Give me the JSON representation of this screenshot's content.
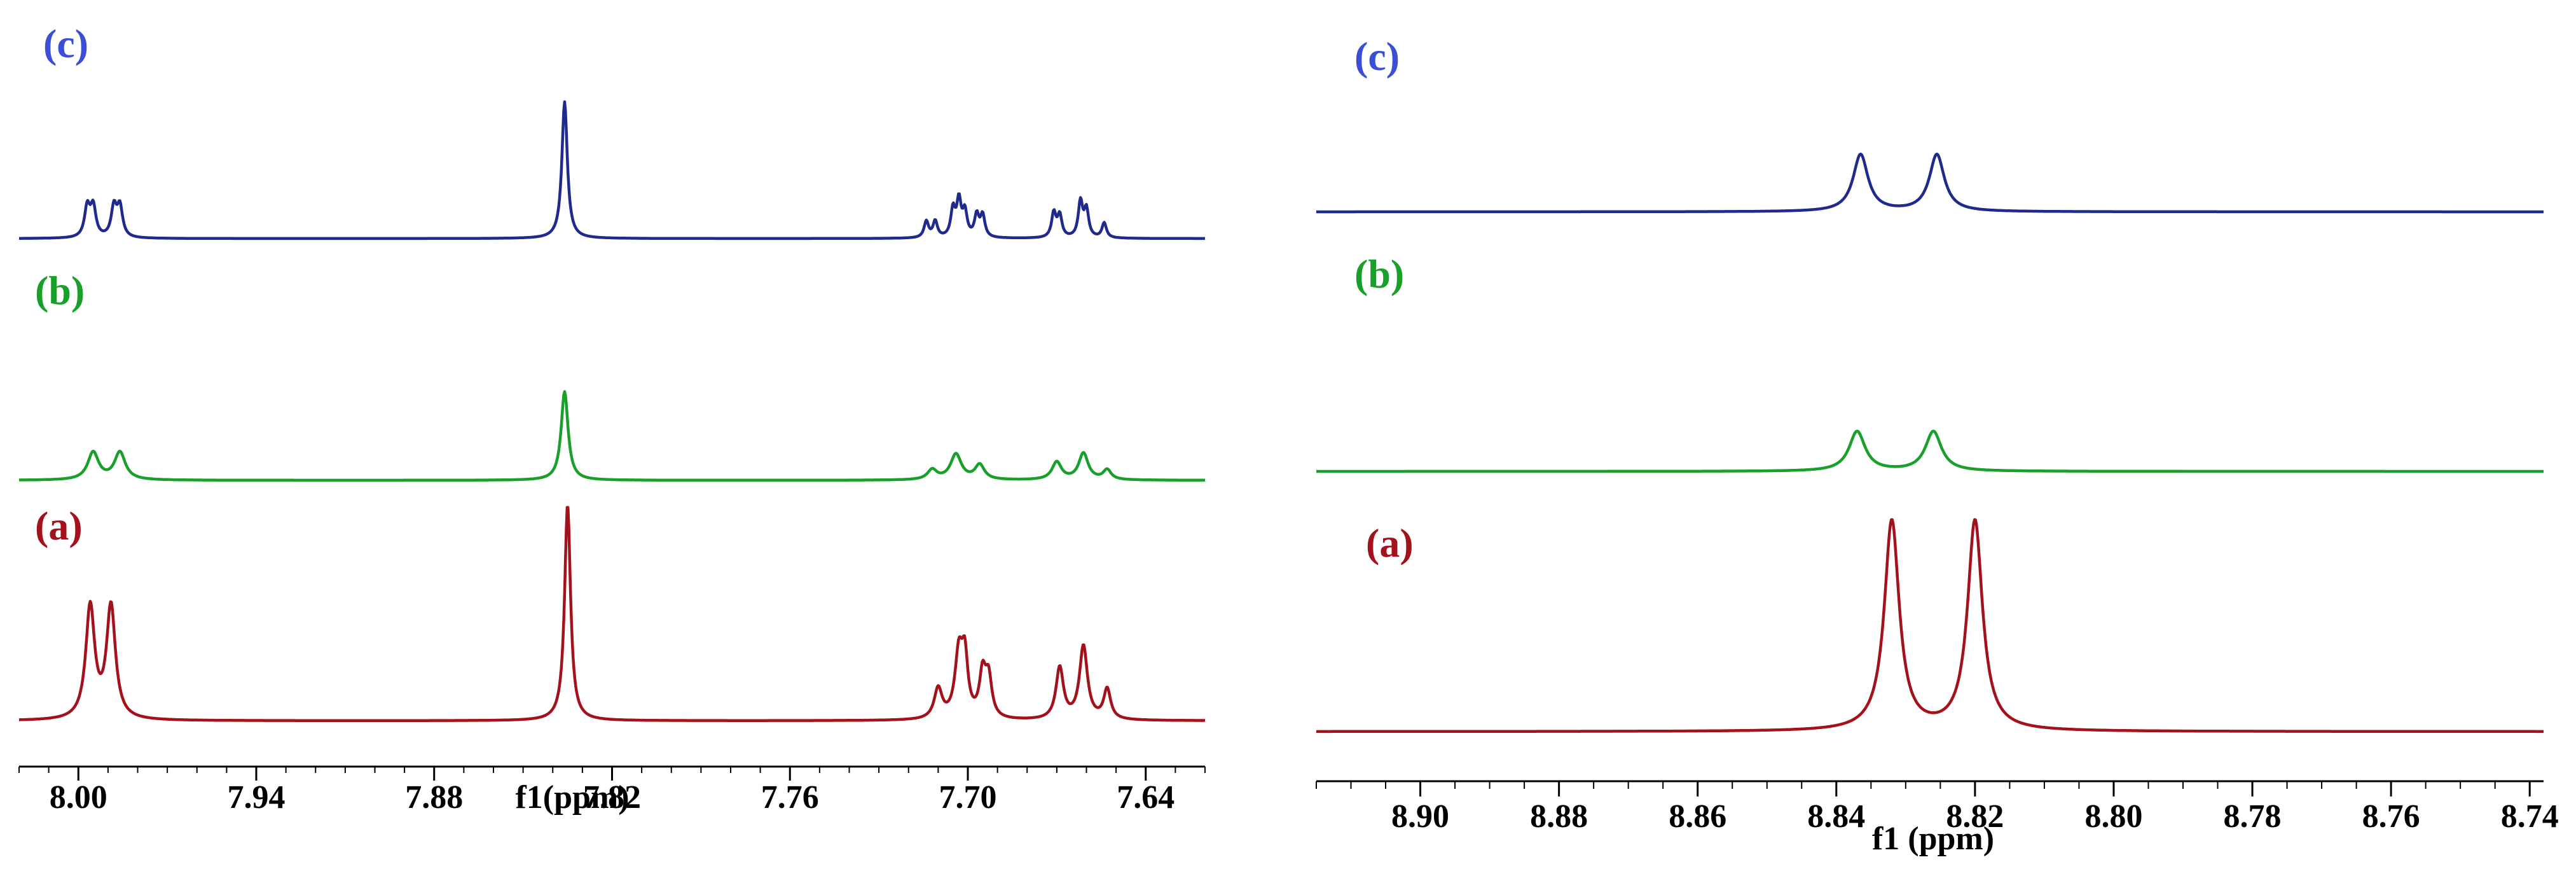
{
  "figure": {
    "panels": [
      {
        "id": "left",
        "xlabel": "f1(ppm)",
        "tick_labels": [
          "8.00",
          "7.94",
          "7.88",
          "7.82",
          "7.76",
          "7.70",
          "7.64"
        ]
      },
      {
        "id": "right",
        "xlabel": "f1 (ppm)",
        "tick_labels": [
          "8.90",
          "8.88",
          "8.86",
          "8.84",
          "8.82",
          "8.80",
          "8.78",
          "8.76",
          "8.74"
        ]
      }
    ]
  },
  "chart_data": [
    {
      "type": "line",
      "title": "",
      "xlabel": "f1(ppm)",
      "ylabel": "",
      "x_reversed": true,
      "xlim": [
        8.02,
        7.62
      ],
      "ticks": [
        8.0,
        7.94,
        7.88,
        7.82,
        7.76,
        7.7,
        7.64
      ],
      "grid": false,
      "series": [
        {
          "name": "(c)",
          "color": "#1f2a8c",
          "label_color": "#3a4fd6",
          "relative_offset": 2.0,
          "peaks": [
            {
              "ppm": 7.997,
              "height": 0.22,
              "width": 0.0011
            },
            {
              "ppm": 7.995,
              "height": 0.22,
              "width": 0.0011
            },
            {
              "ppm": 7.988,
              "height": 0.22,
              "width": 0.0011
            },
            {
              "ppm": 7.986,
              "height": 0.22,
              "width": 0.0011
            },
            {
              "ppm": 7.836,
              "height": 1.0,
              "width": 0.0011
            },
            {
              "ppm": 7.714,
              "height": 0.12,
              "width": 0.0009
            },
            {
              "ppm": 7.711,
              "height": 0.12,
              "width": 0.0009
            },
            {
              "ppm": 7.705,
              "height": 0.2,
              "width": 0.0009
            },
            {
              "ppm": 7.703,
              "height": 0.26,
              "width": 0.0009
            },
            {
              "ppm": 7.701,
              "height": 0.18,
              "width": 0.0009
            },
            {
              "ppm": 7.697,
              "height": 0.16,
              "width": 0.0009
            },
            {
              "ppm": 7.695,
              "height": 0.16,
              "width": 0.0009
            },
            {
              "ppm": 7.671,
              "height": 0.18,
              "width": 0.0009
            },
            {
              "ppm": 7.669,
              "height": 0.16,
              "width": 0.0009
            },
            {
              "ppm": 7.662,
              "height": 0.26,
              "width": 0.0009
            },
            {
              "ppm": 7.66,
              "height": 0.2,
              "width": 0.0009
            },
            {
              "ppm": 7.654,
              "height": 0.11,
              "width": 0.0009
            }
          ]
        },
        {
          "name": "(b)",
          "color": "#18a02a",
          "label_color": "#18a02a",
          "relative_offset": 1.0,
          "peaks": [
            {
              "ppm": 7.995,
              "height": 0.28,
              "width": 0.0022
            },
            {
              "ppm": 7.986,
              "height": 0.28,
              "width": 0.0022
            },
            {
              "ppm": 7.836,
              "height": 0.9,
              "width": 0.0014
            },
            {
              "ppm": 7.712,
              "height": 0.1,
              "width": 0.0019
            },
            {
              "ppm": 7.704,
              "height": 0.26,
              "width": 0.0022
            },
            {
              "ppm": 7.696,
              "height": 0.15,
              "width": 0.0019
            },
            {
              "ppm": 7.67,
              "height": 0.18,
              "width": 0.0019
            },
            {
              "ppm": 7.661,
              "height": 0.27,
              "width": 0.0019
            },
            {
              "ppm": 7.653,
              "height": 0.1,
              "width": 0.0016
            }
          ]
        },
        {
          "name": "(a)",
          "color": "#a3111a",
          "label_color": "#a3111a",
          "relative_offset": 0.0,
          "peaks": [
            {
              "ppm": 7.996,
              "height": 0.52,
              "width": 0.0018
            },
            {
              "ppm": 7.989,
              "height": 0.52,
              "width": 0.0018
            },
            {
              "ppm": 7.835,
              "height": 1.0,
              "width": 0.0012
            },
            {
              "ppm": 7.71,
              "height": 0.14,
              "width": 0.0016
            },
            {
              "ppm": 7.703,
              "height": 0.3,
              "width": 0.0016
            },
            {
              "ppm": 7.701,
              "height": 0.25,
              "width": 0.0012
            },
            {
              "ppm": 7.695,
              "height": 0.2,
              "width": 0.0013
            },
            {
              "ppm": 7.693,
              "height": 0.18,
              "width": 0.0013
            },
            {
              "ppm": 7.669,
              "height": 0.24,
              "width": 0.0015
            },
            {
              "ppm": 7.661,
              "height": 0.34,
              "width": 0.0016
            },
            {
              "ppm": 7.653,
              "height": 0.14,
              "width": 0.0014
            }
          ]
        }
      ]
    },
    {
      "type": "line",
      "title": "",
      "xlabel": "f1 (ppm)",
      "ylabel": "",
      "x_reversed": true,
      "xlim": [
        8.915,
        8.738
      ],
      "ticks": [
        8.9,
        8.88,
        8.86,
        8.84,
        8.82,
        8.8,
        8.78,
        8.76,
        8.74
      ],
      "grid": false,
      "series": [
        {
          "name": "(c)",
          "color": "#1f2a8c",
          "label_color": "#3a4fd6",
          "relative_offset": 2.0,
          "peaks": [
            {
              "ppm": 8.8365,
              "height": 0.56,
              "width": 0.0013
            },
            {
              "ppm": 8.8255,
              "height": 0.56,
              "width": 0.0013
            }
          ]
        },
        {
          "name": "(b)",
          "color": "#18a02a",
          "label_color": "#18a02a",
          "relative_offset": 1.0,
          "peaks": [
            {
              "ppm": 8.837,
              "height": 0.48,
              "width": 0.0014
            },
            {
              "ppm": 8.826,
              "height": 0.48,
              "width": 0.0014
            }
          ]
        },
        {
          "name": "(a)",
          "color": "#a3111a",
          "label_color": "#a3111a",
          "relative_offset": 0.0,
          "peaks": [
            {
              "ppm": 8.832,
              "height": 1.0,
              "width": 0.0013
            },
            {
              "ppm": 8.82,
              "height": 1.0,
              "width": 0.0013
            }
          ]
        }
      ]
    }
  ]
}
